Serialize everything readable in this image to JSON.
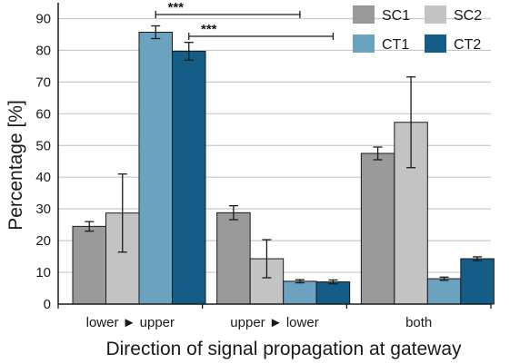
{
  "chart_data": {
    "type": "bar",
    "categories": [
      "lower ► upper",
      "upper ► lower",
      "both"
    ],
    "series": [
      {
        "name": "SC1",
        "color": "#9a9a9a",
        "values": [
          24.5,
          28.8,
          47.5
        ],
        "errors": [
          1.5,
          2.2,
          2.0
        ]
      },
      {
        "name": "SC2",
        "color": "#c3c3c3",
        "values": [
          28.7,
          14.3,
          57.3
        ],
        "errors": [
          12.3,
          6.0,
          14.3
        ]
      },
      {
        "name": "CT1",
        "color": "#6aa2bf",
        "values": [
          85.7,
          7.2,
          8.0
        ],
        "errors": [
          2.0,
          0.5,
          0.5
        ]
      },
      {
        "name": "CT2",
        "color": "#135d87",
        "values": [
          79.7,
          7.0,
          14.3
        ],
        "errors": [
          2.8,
          0.6,
          0.6
        ]
      }
    ],
    "xlabel": "Direction of signal propagation at gateway",
    "ylabel": "Percentage [%]",
    "ylim": [
      0,
      95
    ],
    "yticks": [
      0,
      10,
      20,
      30,
      40,
      50,
      60,
      70,
      80,
      90
    ],
    "grid": true,
    "legend": "top-right",
    "significance": [
      {
        "label": "***",
        "from_category": 0,
        "from_series": 2,
        "to_category": 1,
        "to_series": 2
      },
      {
        "label": "***",
        "from_category": 0,
        "from_series": 3,
        "to_category": 1,
        "to_series": 3
      }
    ]
  }
}
